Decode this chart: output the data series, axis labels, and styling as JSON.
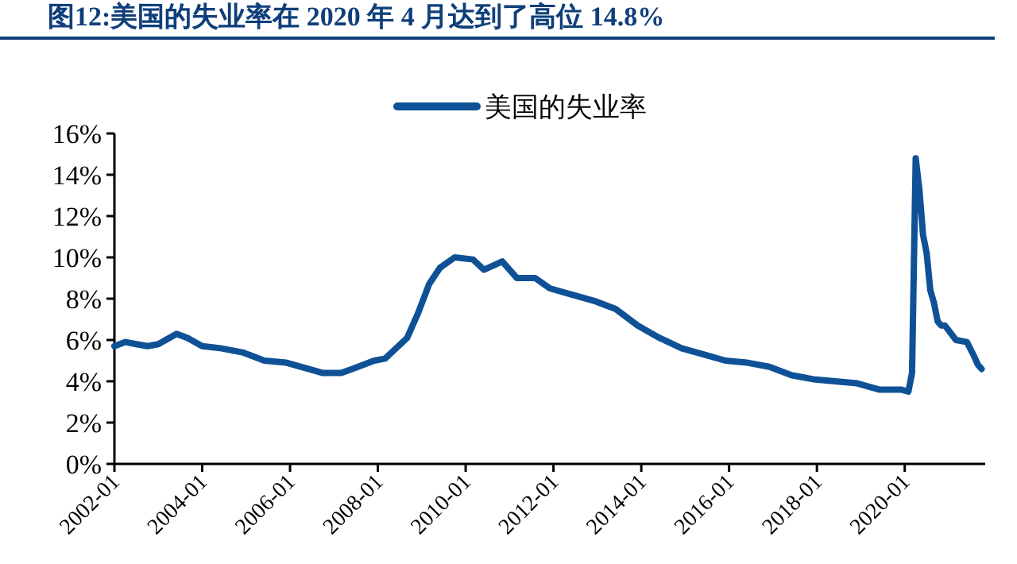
{
  "chart_data": {
    "type": "line",
    "title": "图12:美国的失业率在 2020 年 4 月达到了高位 14.8%",
    "legend": "top",
    "grid": false,
    "marker": "none",
    "xlim": [
      "2002-01",
      "2021-11"
    ],
    "xticks": [
      "2002-01",
      "2004-01",
      "2006-01",
      "2008-01",
      "2010-01",
      "2012-01",
      "2014-01",
      "2016-01",
      "2018-01",
      "2020-01"
    ],
    "ylim": [
      0,
      16
    ],
    "yticks": [
      {
        "value": 0,
        "label": "0%"
      },
      {
        "value": 2,
        "label": "2%"
      },
      {
        "value": 4,
        "label": "4%"
      },
      {
        "value": 6,
        "label": "6%"
      },
      {
        "value": 8,
        "label": "8%"
      },
      {
        "value": 10,
        "label": "10%"
      },
      {
        "value": 12,
        "label": "12%"
      },
      {
        "value": 14,
        "label": "14%"
      },
      {
        "value": 16,
        "label": "16%"
      }
    ],
    "x": [
      "2002-01",
      "2002-04",
      "2002-07",
      "2002-10",
      "2003-01",
      "2003-06",
      "2003-09",
      "2004-01",
      "2004-06",
      "2004-12",
      "2005-06",
      "2005-12",
      "2006-06",
      "2006-10",
      "2007-03",
      "2007-06",
      "2007-12",
      "2008-03",
      "2008-06",
      "2008-09",
      "2008-12",
      "2009-03",
      "2009-06",
      "2009-10",
      "2010-03",
      "2010-06",
      "2010-11",
      "2011-03",
      "2011-08",
      "2011-12",
      "2012-06",
      "2012-12",
      "2013-06",
      "2013-12",
      "2014-06",
      "2014-12",
      "2015-06",
      "2015-12",
      "2016-06",
      "2016-12",
      "2017-06",
      "2017-12",
      "2018-06",
      "2018-12",
      "2019-06",
      "2019-12",
      "2020-02",
      "2020-03",
      "2020-04",
      "2020-05",
      "2020-06",
      "2020-07",
      "2020-08",
      "2020-09",
      "2020-10",
      "2020-11",
      "2020-12",
      "2021-03",
      "2021-06",
      "2021-08",
      "2021-09",
      "2021-10"
    ],
    "series": [
      {
        "name": "美国的失业率",
        "color": "#0f5196",
        "values": [
          5.7,
          5.9,
          5.8,
          5.7,
          5.8,
          6.3,
          6.1,
          5.7,
          5.6,
          5.4,
          5.0,
          4.9,
          4.6,
          4.4,
          4.4,
          4.6,
          5.0,
          5.1,
          5.6,
          6.1,
          7.3,
          8.7,
          9.5,
          10.0,
          9.9,
          9.4,
          9.8,
          9.0,
          9.0,
          8.5,
          8.2,
          7.9,
          7.5,
          6.7,
          6.1,
          5.6,
          5.3,
          5.0,
          4.9,
          4.7,
          4.3,
          4.1,
          4.0,
          3.9,
          3.6,
          3.6,
          3.5,
          4.4,
          14.8,
          13.3,
          11.1,
          10.2,
          8.4,
          7.8,
          6.9,
          6.7,
          6.7,
          6.0,
          5.9,
          5.2,
          4.8,
          4.6
        ]
      }
    ]
  }
}
